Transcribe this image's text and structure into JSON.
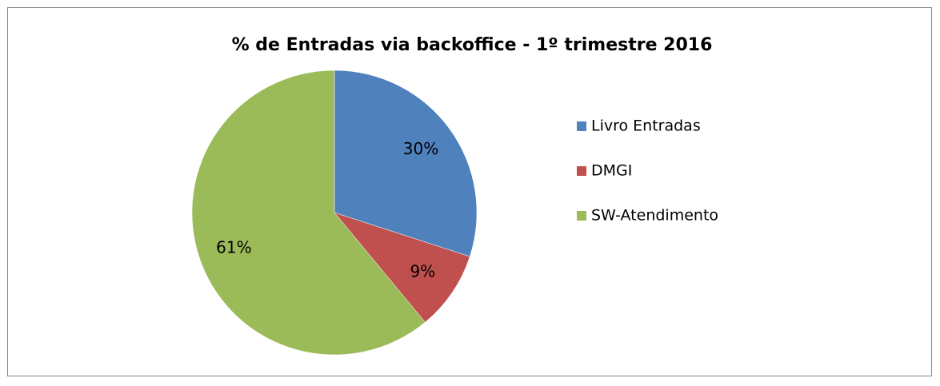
{
  "chart_data": {
    "type": "pie",
    "title": "% de Entradas via backoffice - 1º trimestre 2016",
    "categories": [
      "Livro Entradas",
      "DMGI",
      "SW-Atendimento"
    ],
    "values": [
      30,
      9,
      61
    ],
    "value_labels": [
      "30%",
      "9%",
      "61%"
    ],
    "colors": [
      "#4f81bd",
      "#c0504d",
      "#9bbb59"
    ],
    "legend": "right"
  }
}
